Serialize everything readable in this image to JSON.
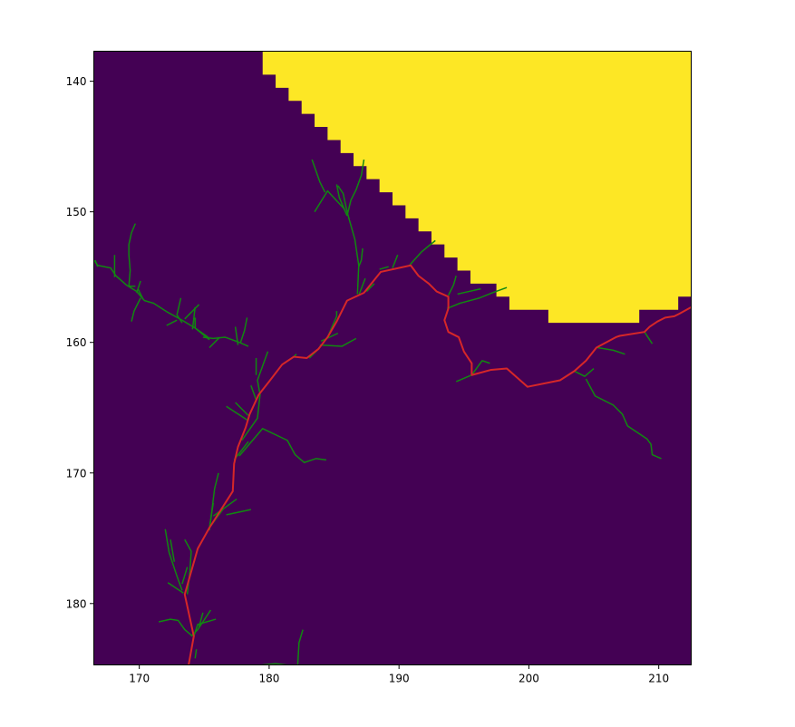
{
  "chart_data": {
    "type": "heatmap",
    "title": "",
    "xlabel": "",
    "ylabel": "",
    "xlim": [
      166.5,
      212.5
    ],
    "ylim": [
      184.7,
      137.7
    ],
    "y_inverted": true,
    "grid": false,
    "x_ticks": [
      "170",
      "180",
      "190",
      "200",
      "210"
    ],
    "y_ticks": [
      "140",
      "150",
      "160",
      "170",
      "180"
    ],
    "colors": {
      "background": "#440154",
      "region": "#fde725",
      "path": "#d62728",
      "branches": "#118811",
      "frame": "#000000"
    },
    "region_boundary": [
      [
        179.5,
        137.7
      ],
      [
        179.5,
        139.5
      ],
      [
        180.5,
        139.5
      ],
      [
        180.5,
        140.5
      ],
      [
        181.5,
        140.5
      ],
      [
        181.5,
        141.5
      ],
      [
        182.5,
        141.5
      ],
      [
        182.5,
        142.5
      ],
      [
        183.5,
        142.5
      ],
      [
        183.5,
        143.5
      ],
      [
        184.5,
        143.5
      ],
      [
        184.5,
        144.5
      ],
      [
        185.5,
        144.5
      ],
      [
        185.5,
        145.5
      ],
      [
        186.5,
        145.5
      ],
      [
        186.5,
        146.5
      ],
      [
        187.5,
        146.5
      ],
      [
        187.5,
        147.5
      ],
      [
        188.5,
        147.5
      ],
      [
        188.5,
        148.5
      ],
      [
        189.5,
        148.5
      ],
      [
        189.5,
        149.5
      ],
      [
        190.5,
        149.5
      ],
      [
        190.5,
        150.5
      ],
      [
        191.5,
        150.5
      ],
      [
        191.5,
        151.5
      ],
      [
        192.5,
        151.5
      ],
      [
        192.5,
        152.5
      ],
      [
        193.5,
        152.5
      ],
      [
        193.5,
        153.5
      ],
      [
        194.5,
        153.5
      ],
      [
        194.5,
        154.5
      ],
      [
        195.5,
        154.5
      ],
      [
        195.5,
        155.5
      ],
      [
        197.5,
        155.5
      ],
      [
        197.5,
        156.5
      ],
      [
        198.5,
        156.5
      ],
      [
        198.5,
        157.5
      ],
      [
        201.5,
        157.5
      ],
      [
        201.5,
        158.5
      ],
      [
        208.5,
        158.5
      ],
      [
        208.5,
        157.5
      ],
      [
        211.5,
        157.5
      ],
      [
        211.5,
        156.5
      ],
      [
        212.5,
        156.5
      ],
      [
        212.5,
        137.7
      ]
    ],
    "main_path": [
      [
        173.8,
        184.7
      ],
      [
        174.2,
        182.5
      ],
      [
        173.5,
        179.3
      ],
      [
        174.5,
        175.8
      ],
      [
        175.4,
        174.2
      ],
      [
        177.2,
        171.4
      ],
      [
        177.3,
        169.3
      ],
      [
        177.6,
        168.0
      ],
      [
        178.2,
        166.5
      ],
      [
        178.5,
        165.5
      ],
      [
        179.2,
        164.0
      ],
      [
        180.0,
        163.0
      ],
      [
        181.0,
        161.7
      ],
      [
        181.9,
        161.1
      ],
      [
        182.9,
        161.2
      ],
      [
        183.8,
        160.5
      ],
      [
        184.5,
        159.6
      ],
      [
        185.2,
        158.4
      ],
      [
        186.0,
        156.8
      ],
      [
        187.3,
        156.2
      ],
      [
        188.6,
        154.6
      ],
      [
        190.9,
        154.1
      ],
      [
        191.5,
        154.9
      ],
      [
        192.3,
        155.5
      ],
      [
        192.9,
        156.1
      ],
      [
        193.8,
        156.5
      ],
      [
        193.8,
        157.4
      ],
      [
        193.5,
        158.3
      ],
      [
        193.8,
        159.2
      ],
      [
        194.6,
        159.6
      ],
      [
        195.0,
        160.7
      ],
      [
        195.6,
        161.6
      ],
      [
        195.6,
        162.5
      ],
      [
        197.1,
        162.1
      ],
      [
        198.3,
        162.0
      ],
      [
        199.9,
        163.4
      ],
      [
        202.4,
        162.9
      ],
      [
        203.5,
        162.2
      ],
      [
        204.4,
        161.4
      ],
      [
        205.2,
        160.4
      ],
      [
        206.7,
        159.6
      ],
      [
        207.0,
        159.5
      ],
      [
        208.9,
        159.2
      ],
      [
        209.3,
        158.8
      ],
      [
        209.9,
        158.4
      ],
      [
        210.5,
        158.1
      ],
      [
        211.2,
        158.0
      ],
      [
        211.6,
        157.8
      ],
      [
        212.5,
        157.3
      ]
    ],
    "branches": [
      [
        [
          176.7,
          173.2
        ],
        [
          178.6,
          172.8
        ]
      ],
      [
        [
          175.7,
          173.3
        ],
        [
          177.5,
          172.0
        ]
      ],
      [
        [
          175.4,
          174.4
        ],
        [
          175.8,
          171.2
        ],
        [
          176.1,
          170.0
        ]
      ],
      [
        [
          175.7,
          172.3
        ],
        [
          175.4,
          174.2
        ],
        [
          176.5,
          172.7
        ]
      ],
      [
        [
          177.7,
          168.7
        ],
        [
          179.5,
          166.6
        ],
        [
          181.4,
          167.5
        ],
        [
          182.0,
          168.6
        ],
        [
          182.7,
          169.2
        ],
        [
          183.6,
          168.9
        ],
        [
          184.4,
          169.0
        ]
      ],
      [
        [
          177.9,
          167.5
        ],
        [
          179.1,
          165.8
        ],
        [
          179.3,
          164.0
        ],
        [
          179.1,
          162.9
        ],
        [
          179.9,
          160.7
        ]
      ],
      [
        [
          178.4,
          166.0
        ],
        [
          176.7,
          164.9
        ]
      ],
      [
        [
          178.4,
          165.6
        ],
        [
          177.4,
          164.6
        ]
      ],
      [
        [
          179.0,
          164.4
        ],
        [
          178.6,
          163.3
        ]
      ],
      [
        [
          179.0,
          162.5
        ],
        [
          179.0,
          161.2
        ]
      ],
      [
        [
          177.3,
          169.0
        ],
        [
          178.4,
          167.6
        ]
      ],
      [
        [
          174.2,
          182.5
        ],
        [
          174.5,
          181.6
        ],
        [
          175.9,
          181.2
        ]
      ],
      [
        [
          174.1,
          182.5
        ],
        [
          173.5,
          182.0
        ],
        [
          173.0,
          181.3
        ],
        [
          172.4,
          181.2
        ],
        [
          171.5,
          181.4
        ]
      ],
      [
        [
          174.0,
          182.5
        ],
        [
          174.5,
          182.0
        ],
        [
          175.5,
          180.5
        ]
      ],
      [
        [
          174.6,
          181.8
        ],
        [
          174.9,
          180.7
        ]
      ],
      [
        [
          173.7,
          179.3
        ],
        [
          173.9,
          177.5
        ],
        [
          174.0,
          176.0
        ],
        [
          173.5,
          175.1
        ]
      ],
      [
        [
          173.4,
          179.2
        ],
        [
          172.2,
          178.4
        ]
      ],
      [
        [
          173.3,
          179.0
        ],
        [
          172.9,
          177.9
        ],
        [
          172.3,
          176.1
        ],
        [
          172.0,
          174.3
        ]
      ],
      [
        [
          172.7,
          176.8
        ],
        [
          172.4,
          175.1
        ]
      ],
      [
        [
          173.3,
          178.5
        ],
        [
          173.7,
          177.2
        ]
      ],
      [
        [
          174.3,
          184.2
        ],
        [
          174.4,
          183.5
        ]
      ],
      [
        [
          182.2,
          184.7
        ],
        [
          182.3,
          183.0
        ],
        [
          182.6,
          182.0
        ]
      ],
      [
        [
          179.5,
          184.7
        ],
        [
          180.5,
          184.6
        ],
        [
          181.3,
          184.7
        ]
      ],
      [
        [
          184.5,
          159.6
        ],
        [
          185.2,
          158.0
        ],
        [
          185.2,
          157.6
        ]
      ],
      [
        [
          183.9,
          160.2
        ],
        [
          185.6,
          160.3
        ],
        [
          186.7,
          159.7
        ]
      ],
      [
        [
          184.0,
          159.9
        ],
        [
          185.3,
          159.3
        ]
      ],
      [
        [
          183.8,
          160.5
        ],
        [
          183.1,
          161.2
        ]
      ],
      [
        [
          186.8,
          156.3
        ],
        [
          186.9,
          154.1
        ],
        [
          186.6,
          152.1
        ],
        [
          186.0,
          150.0
        ],
        [
          185.7,
          148.6
        ],
        [
          185.3,
          148.0
        ]
      ],
      [
        [
          185.8,
          149.8
        ],
        [
          184.5,
          148.4
        ],
        [
          183.5,
          150.0
        ]
      ],
      [
        [
          184.3,
          148.5
        ],
        [
          183.9,
          147.7
        ],
        [
          183.3,
          146.0
        ]
      ],
      [
        [
          186.0,
          150.3
        ],
        [
          186.3,
          149.1
        ],
        [
          186.7,
          148.3
        ],
        [
          187.1,
          147.2
        ],
        [
          187.3,
          146.0
        ]
      ],
      [
        [
          186.0,
          150.3
        ],
        [
          185.4,
          148.9
        ],
        [
          185.2,
          147.9
        ]
      ],
      [
        [
          186.9,
          154.2
        ],
        [
          187.1,
          153.7
        ],
        [
          187.2,
          152.8
        ]
      ],
      [
        [
          186.9,
          156.4
        ],
        [
          187.4,
          155.1
        ]
      ],
      [
        [
          188.5,
          154.4
        ],
        [
          189.2,
          154.2
        ]
      ],
      [
        [
          187.5,
          156.1
        ],
        [
          188.1,
          155.5
        ]
      ],
      [
        [
          189.5,
          154.3
        ],
        [
          189.9,
          153.3
        ]
      ],
      [
        [
          190.8,
          154.1
        ],
        [
          191.7,
          153.1
        ],
        [
          192.3,
          152.6
        ],
        [
          192.8,
          152.2
        ]
      ],
      [
        [
          193.7,
          157.4
        ],
        [
          194.7,
          157.0
        ],
        [
          196.2,
          156.6
        ],
        [
          197.2,
          156.2
        ],
        [
          198.3,
          155.8
        ]
      ],
      [
        [
          193.8,
          156.4
        ],
        [
          194.2,
          155.6
        ],
        [
          194.4,
          154.9
        ]
      ],
      [
        [
          194.5,
          156.3
        ],
        [
          196.3,
          155.9
        ]
      ],
      [
        [
          195.6,
          162.5
        ],
        [
          194.4,
          163.0
        ]
      ],
      [
        [
          195.6,
          162.5
        ],
        [
          196.4,
          161.4
        ],
        [
          197.0,
          161.6
        ]
      ],
      [
        [
          203.5,
          162.2
        ],
        [
          204.3,
          162.6
        ],
        [
          205.0,
          162.0
        ]
      ],
      [
        [
          204.4,
          162.8
        ],
        [
          205.1,
          164.1
        ],
        [
          206.5,
          164.8
        ],
        [
          207.2,
          165.5
        ],
        [
          207.6,
          166.4
        ],
        [
          208.5,
          167.0
        ],
        [
          209.1,
          167.4
        ],
        [
          209.4,
          167.8
        ],
        [
          209.5,
          168.6
        ],
        [
          210.2,
          168.9
        ]
      ],
      [
        [
          205.3,
          160.4
        ],
        [
          206.5,
          160.6
        ],
        [
          207.4,
          160.9
        ]
      ],
      [
        [
          208.9,
          159.2
        ],
        [
          209.5,
          160.1
        ]
      ],
      [
        [
          175.4,
          159.8
        ],
        [
          174.3,
          158.9
        ],
        [
          173.3,
          158.3
        ],
        [
          172.2,
          157.7
        ],
        [
          171.1,
          157.0
        ],
        [
          170.4,
          156.8
        ],
        [
          169.8,
          156.1
        ],
        [
          169.0,
          155.6
        ],
        [
          168.2,
          154.9
        ],
        [
          167.8,
          154.3
        ],
        [
          166.8,
          154.1
        ],
        [
          166.5,
          153.7
        ]
      ],
      [
        [
          174.9,
          159.6
        ],
        [
          175.7,
          159.7
        ],
        [
          176.6,
          159.6
        ],
        [
          177.7,
          160.0
        ],
        [
          178.4,
          160.3
        ]
      ],
      [
        [
          176.2,
          159.6
        ],
        [
          175.4,
          160.4
        ]
      ],
      [
        [
          177.6,
          160.2
        ],
        [
          177.4,
          158.8
        ]
      ],
      [
        [
          177.8,
          160.0
        ],
        [
          178.1,
          159.1
        ],
        [
          178.3,
          158.1
        ]
      ],
      [
        [
          175.3,
          159.6
        ],
        [
          174.3,
          158.9
        ],
        [
          174.3,
          158.1
        ]
      ],
      [
        [
          174.1,
          159.0
        ],
        [
          174.3,
          157.3
        ]
      ],
      [
        [
          173.5,
          158.2
        ],
        [
          174.6,
          157.1
        ]
      ],
      [
        [
          173.3,
          158.5
        ],
        [
          172.9,
          157.9
        ],
        [
          173.2,
          156.6
        ]
      ],
      [
        [
          172.9,
          158.3
        ],
        [
          172.1,
          158.7
        ]
      ],
      [
        [
          169.7,
          155.7
        ],
        [
          169.2,
          155.7
        ],
        [
          169.3,
          154.5
        ],
        [
          169.2,
          153.3
        ],
        [
          169.2,
          152.5
        ],
        [
          169.4,
          151.6
        ],
        [
          169.7,
          150.9
        ]
      ],
      [
        [
          170.1,
          156.6
        ],
        [
          169.6,
          157.6
        ],
        [
          169.4,
          158.4
        ]
      ],
      [
        [
          170.3,
          156.7
        ],
        [
          169.9,
          155.9
        ]
      ],
      [
        [
          168.1,
          155.0
        ],
        [
          168.1,
          153.3
        ]
      ],
      [
        [
          169.8,
          156.2
        ],
        [
          170.1,
          155.3
        ]
      ],
      [
        [
          166.8,
          154.2
        ],
        [
          166.6,
          153.7
        ]
      ],
      [
        [
          181.9,
          161.1
        ],
        [
          182.1,
          160.9
        ]
      ]
    ]
  }
}
